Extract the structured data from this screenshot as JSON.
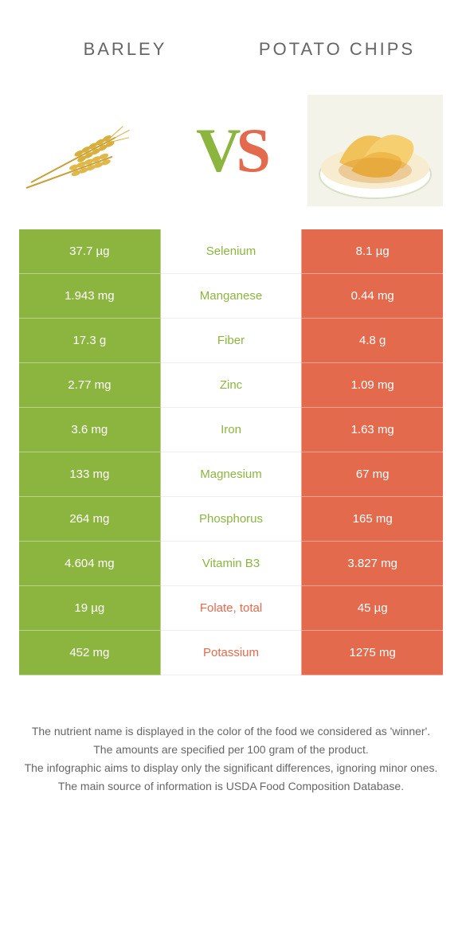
{
  "header": {
    "left_title": "Barley",
    "right_title": "Potato chips"
  },
  "vs": {
    "v": "V",
    "s": "S"
  },
  "colors": {
    "left": "#8cb53f",
    "right": "#e36a4c",
    "lose_bg": "#f7f7f7",
    "text_muted": "#888"
  },
  "rows": [
    {
      "nutrient": "Selenium",
      "left": "37.7 µg",
      "right": "8.1 µg",
      "winner": "left"
    },
    {
      "nutrient": "Manganese",
      "left": "1.943 mg",
      "right": "0.44 mg",
      "winner": "left"
    },
    {
      "nutrient": "Fiber",
      "left": "17.3 g",
      "right": "4.8 g",
      "winner": "left"
    },
    {
      "nutrient": "Zinc",
      "left": "2.77 mg",
      "right": "1.09 mg",
      "winner": "left"
    },
    {
      "nutrient": "Iron",
      "left": "3.6 mg",
      "right": "1.63 mg",
      "winner": "left"
    },
    {
      "nutrient": "Magnesium",
      "left": "133 mg",
      "right": "67 mg",
      "winner": "left"
    },
    {
      "nutrient": "Phosphorus",
      "left": "264 mg",
      "right": "165 mg",
      "winner": "left"
    },
    {
      "nutrient": "Vitamin B3",
      "left": "4.604 mg",
      "right": "3.827 mg",
      "winner": "left"
    },
    {
      "nutrient": "Folate, total",
      "left": "19 µg",
      "right": "45 µg",
      "winner": "right"
    },
    {
      "nutrient": "Potassium",
      "left": "452 mg",
      "right": "1275 mg",
      "winner": "right"
    }
  ],
  "footer": {
    "line1": "The nutrient name is displayed in the color of the food we considered as 'winner'.",
    "line2": "The amounts are specified per 100 gram of the product.",
    "line3": "The infographic aims to display only the significant differences, ignoring minor ones.",
    "line4": "The main source of information is USDA Food Composition Database."
  }
}
